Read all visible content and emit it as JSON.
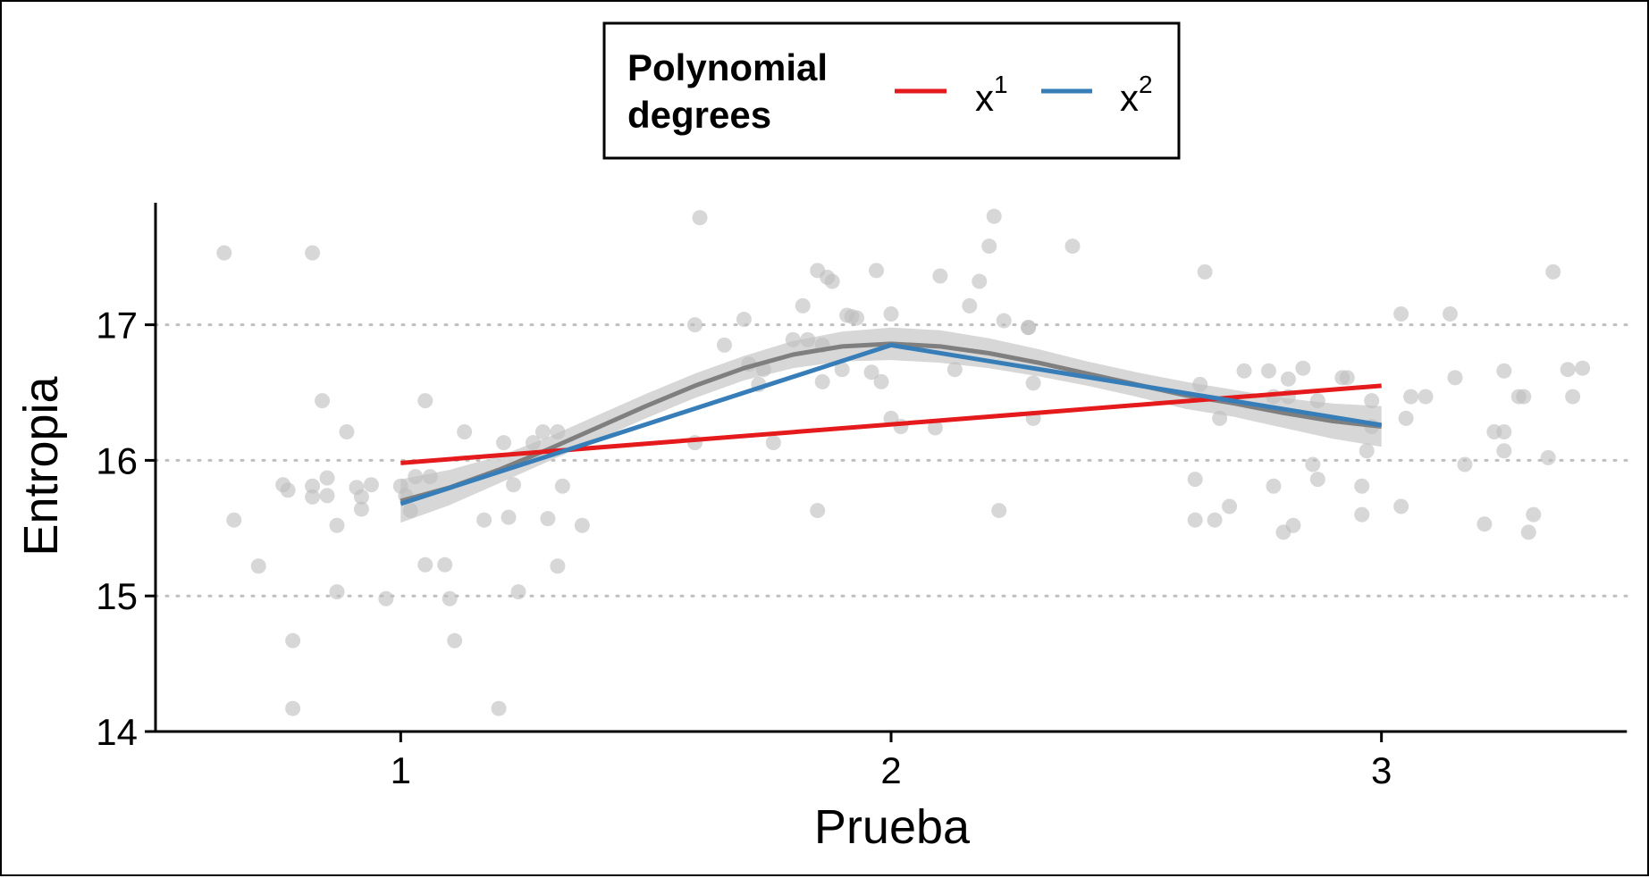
{
  "chart_data": {
    "type": "scatter",
    "xlabel": "Prueba",
    "ylabel": "Entropia",
    "xlim": [
      0.5,
      3.5
    ],
    "ylim": [
      14,
      17.9
    ],
    "x_ticks": [
      1,
      2,
      3
    ],
    "y_ticks": [
      14,
      15,
      16,
      17
    ],
    "grid": "horizontal dotted",
    "legend": {
      "title_line1": "Polynomial",
      "title_line2": "degrees",
      "placement": "top-center",
      "entries": [
        {
          "base": "x",
          "sup": "1",
          "color": "#E41A1C"
        },
        {
          "base": "x",
          "sup": "2",
          "color": "#377EB8"
        }
      ]
    },
    "points": [
      [
        0.64,
        17.53
      ],
      [
        0.82,
        17.53
      ],
      [
        0.66,
        15.56
      ],
      [
        0.71,
        15.22
      ],
      [
        0.76,
        15.82
      ],
      [
        0.77,
        15.78
      ],
      [
        0.78,
        14.67
      ],
      [
        0.82,
        15.81
      ],
      [
        0.82,
        15.73
      ],
      [
        0.84,
        16.44
      ],
      [
        0.85,
        15.87
      ],
      [
        0.85,
        15.74
      ],
      [
        0.87,
        15.03
      ],
      [
        0.87,
        15.52
      ],
      [
        0.89,
        16.21
      ],
      [
        0.91,
        15.8
      ],
      [
        0.92,
        15.64
      ],
      [
        0.92,
        15.73
      ],
      [
        0.94,
        15.82
      ],
      [
        0.97,
        14.98
      ],
      [
        0.78,
        14.17
      ],
      [
        1.0,
        15.81
      ],
      [
        1.01,
        15.74
      ],
      [
        1.02,
        15.63
      ],
      [
        1.03,
        15.88
      ],
      [
        1.05,
        16.44
      ],
      [
        1.05,
        15.23
      ],
      [
        1.06,
        15.88
      ],
      [
        1.09,
        15.23
      ],
      [
        1.1,
        14.98
      ],
      [
        1.11,
        14.67
      ],
      [
        1.13,
        16.21
      ],
      [
        1.17,
        15.56
      ],
      [
        1.2,
        14.17
      ],
      [
        1.21,
        16.13
      ],
      [
        1.23,
        15.82
      ],
      [
        1.24,
        15.03
      ],
      [
        1.27,
        16.13
      ],
      [
        1.29,
        16.21
      ],
      [
        1.3,
        15.57
      ],
      [
        1.32,
        16.21
      ],
      [
        1.32,
        15.22
      ],
      [
        1.33,
        15.81
      ],
      [
        1.37,
        15.52
      ],
      [
        1.22,
        15.58
      ],
      [
        1.61,
        17.79
      ],
      [
        1.6,
        17.0
      ],
      [
        1.6,
        16.13
      ],
      [
        1.66,
        16.85
      ],
      [
        1.7,
        17.04
      ],
      [
        1.71,
        16.71
      ],
      [
        1.73,
        16.56
      ],
      [
        1.74,
        16.67
      ],
      [
        1.76,
        16.13
      ],
      [
        1.8,
        16.89
      ],
      [
        1.82,
        17.14
      ],
      [
        1.83,
        16.89
      ],
      [
        1.85,
        17.4
      ],
      [
        1.85,
        15.63
      ],
      [
        1.86,
        16.58
      ],
      [
        1.87,
        17.35
      ],
      [
        1.88,
        17.32
      ],
      [
        1.9,
        16.67
      ],
      [
        1.91,
        17.07
      ],
      [
        1.92,
        17.06
      ],
      [
        1.93,
        17.05
      ],
      [
        1.96,
        16.65
      ],
      [
        1.97,
        17.4
      ],
      [
        1.98,
        16.58
      ],
      [
        2.0,
        17.08
      ],
      [
        2.0,
        16.31
      ],
      [
        2.02,
        16.25
      ],
      [
        2.09,
        16.24
      ],
      [
        2.1,
        17.36
      ],
      [
        2.13,
        16.67
      ],
      [
        2.16,
        17.14
      ],
      [
        2.18,
        17.32
      ],
      [
        2.2,
        17.58
      ],
      [
        2.21,
        17.8
      ],
      [
        2.22,
        15.63
      ],
      [
        2.23,
        17.03
      ],
      [
        2.28,
        16.98
      ],
      [
        2.28,
        16.98
      ],
      [
        2.29,
        16.57
      ],
      [
        2.29,
        16.31
      ],
      [
        2.37,
        17.58
      ],
      [
        1.86,
        16.85
      ],
      [
        2.62,
        15.56
      ],
      [
        2.62,
        15.86
      ],
      [
        2.63,
        16.56
      ],
      [
        2.64,
        17.39
      ],
      [
        2.66,
        15.56
      ],
      [
        2.67,
        16.31
      ],
      [
        2.69,
        15.66
      ],
      [
        2.72,
        16.66
      ],
      [
        2.77,
        16.66
      ],
      [
        2.78,
        15.81
      ],
      [
        2.78,
        16.47
      ],
      [
        2.8,
        15.47
      ],
      [
        2.81,
        16.6
      ],
      [
        2.81,
        16.47
      ],
      [
        2.82,
        15.52
      ],
      [
        2.84,
        16.68
      ],
      [
        2.86,
        15.97
      ],
      [
        2.87,
        16.44
      ],
      [
        2.87,
        15.86
      ],
      [
        2.92,
        16.61
      ],
      [
        2.96,
        15.6
      ],
      [
        2.96,
        15.81
      ],
      [
        2.97,
        16.07
      ],
      [
        2.98,
        16.25
      ],
      [
        2.98,
        16.44
      ],
      [
        3.04,
        15.66
      ],
      [
        3.04,
        17.08
      ],
      [
        3.05,
        16.31
      ],
      [
        3.06,
        16.47
      ],
      [
        3.09,
        16.47
      ],
      [
        3.14,
        17.08
      ],
      [
        3.15,
        16.61
      ],
      [
        3.17,
        15.97
      ],
      [
        3.21,
        15.53
      ],
      [
        3.23,
        16.21
      ],
      [
        3.25,
        16.66
      ],
      [
        3.25,
        16.21
      ],
      [
        3.25,
        16.07
      ],
      [
        3.28,
        16.47
      ],
      [
        3.29,
        16.47
      ],
      [
        3.3,
        15.47
      ],
      [
        3.31,
        15.6
      ],
      [
        3.34,
        16.02
      ],
      [
        3.35,
        17.39
      ],
      [
        3.38,
        16.67
      ],
      [
        3.39,
        16.47
      ],
      [
        3.41,
        16.68
      ],
      [
        2.93,
        16.61
      ]
    ],
    "series": [
      {
        "x": [
          1,
          3
        ],
        "y": [
          15.98,
          16.55
        ],
        "color": "#E41A1C"
      },
      {
        "x": [
          1,
          2,
          3
        ],
        "y": [
          15.68,
          16.85,
          16.26
        ],
        "color": "#377EB8"
      },
      {
        "smooth": true,
        "x": [
          1.0,
          1.1,
          1.2,
          1.3,
          1.4,
          1.5,
          1.6,
          1.7,
          1.8,
          1.9,
          2.0,
          2.1,
          2.2,
          2.3,
          2.4,
          2.5,
          2.6,
          2.7,
          2.8,
          2.9,
          3.0
        ],
        "y": [
          15.7,
          15.8,
          15.93,
          16.08,
          16.24,
          16.4,
          16.55,
          16.68,
          16.78,
          16.84,
          16.86,
          16.84,
          16.79,
          16.72,
          16.64,
          16.56,
          16.48,
          16.42,
          16.35,
          16.29,
          16.25
        ],
        "band_half_width": [
          0.16,
          0.13,
          0.1,
          0.09,
          0.09,
          0.09,
          0.09,
          0.09,
          0.1,
          0.11,
          0.12,
          0.12,
          0.11,
          0.1,
          0.09,
          0.09,
          0.1,
          0.1,
          0.11,
          0.13,
          0.15
        ],
        "color": "#7F7F7F",
        "band_color": "#D3D3D3"
      }
    ],
    "point_color": "#BEBEBE"
  }
}
